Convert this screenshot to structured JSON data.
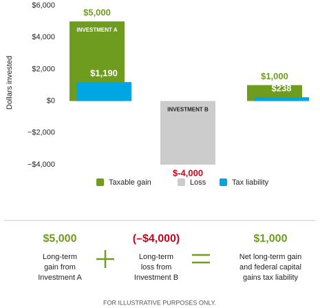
{
  "chart_data": {
    "type": "bar",
    "y_label": "Dollars invested",
    "categories": [
      "INVESTMENT A",
      "INVESTMENT B",
      null
    ],
    "series": [
      {
        "name": "Taxable gain",
        "color": "#6e9c1f",
        "values": [
          5000,
          null,
          1000
        ],
        "value_labels": [
          "$5,000",
          null,
          "$1,000"
        ]
      },
      {
        "name": "Loss",
        "color": "#cccccc",
        "values": [
          null,
          -4000,
          null
        ],
        "value_labels": [
          null,
          "$-4,000",
          null
        ]
      },
      {
        "name": "Tax liability",
        "color": "#00a5e3",
        "values": [
          1190,
          null,
          238
        ],
        "value_labels": [
          "$1,190",
          null,
          "$238"
        ]
      }
    ],
    "ylim": [
      -4000,
      6000
    ],
    "yticks": [
      {
        "value": -4000,
        "label": "−$4,000"
      },
      {
        "value": -2000,
        "label": "−$2,000"
      },
      {
        "value": 0,
        "label": "$0"
      },
      {
        "value": 2000,
        "label": "$2,000"
      },
      {
        "value": 4000,
        "label": "$4,000"
      },
      {
        "value": 6000,
        "label": "$6,000"
      }
    ],
    "grid": false,
    "legend": "bottom"
  },
  "summary": {
    "items": [
      {
        "value": "$5,000",
        "lines": [
          "Long-term",
          "gain from",
          "Investment A"
        ]
      },
      {
        "value": "(–$4,000)",
        "lines": [
          "Long-term",
          "loss from",
          "Investment B"
        ]
      },
      {
        "value": "$1,000",
        "lines": [
          "Net long-term gain",
          "and federal capital",
          "gains tax liability"
        ]
      }
    ]
  },
  "footer": "FOR ILLUSTRATIVE PURPOSES ONLY."
}
